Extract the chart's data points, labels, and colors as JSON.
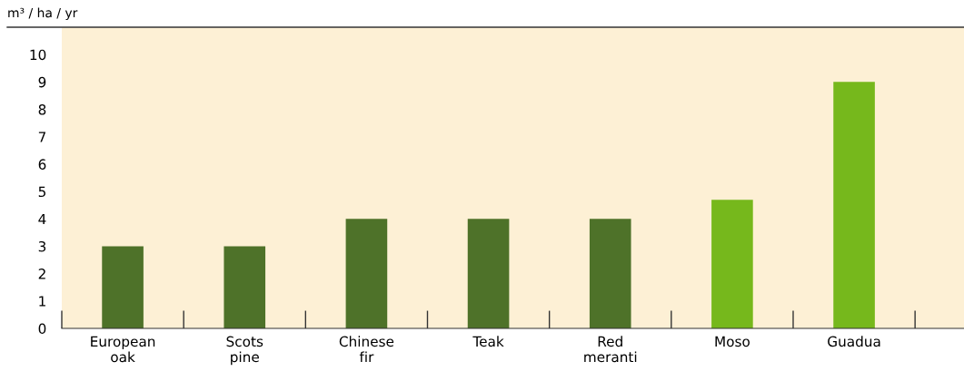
{
  "chart_data": {
    "type": "bar",
    "ylabel": "m³ / ha / yr",
    "categories": [
      "European\noak",
      "Scots\npine",
      "Chinese\nfir",
      "Teak",
      "Red\nmeranti",
      "Moso",
      "Guadua"
    ],
    "values": [
      3,
      3,
      4,
      4,
      4,
      4.7,
      9
    ],
    "colors": [
      "#4e7229",
      "#4e7229",
      "#4e7229",
      "#4e7229",
      "#4e7229",
      "#76b81c",
      "#76b81c"
    ],
    "ylim": [
      0,
      11
    ],
    "yticks": [
      0,
      1,
      2,
      3,
      4,
      5,
      6,
      7,
      8,
      9,
      10
    ],
    "grid": false,
    "legend": false
  }
}
